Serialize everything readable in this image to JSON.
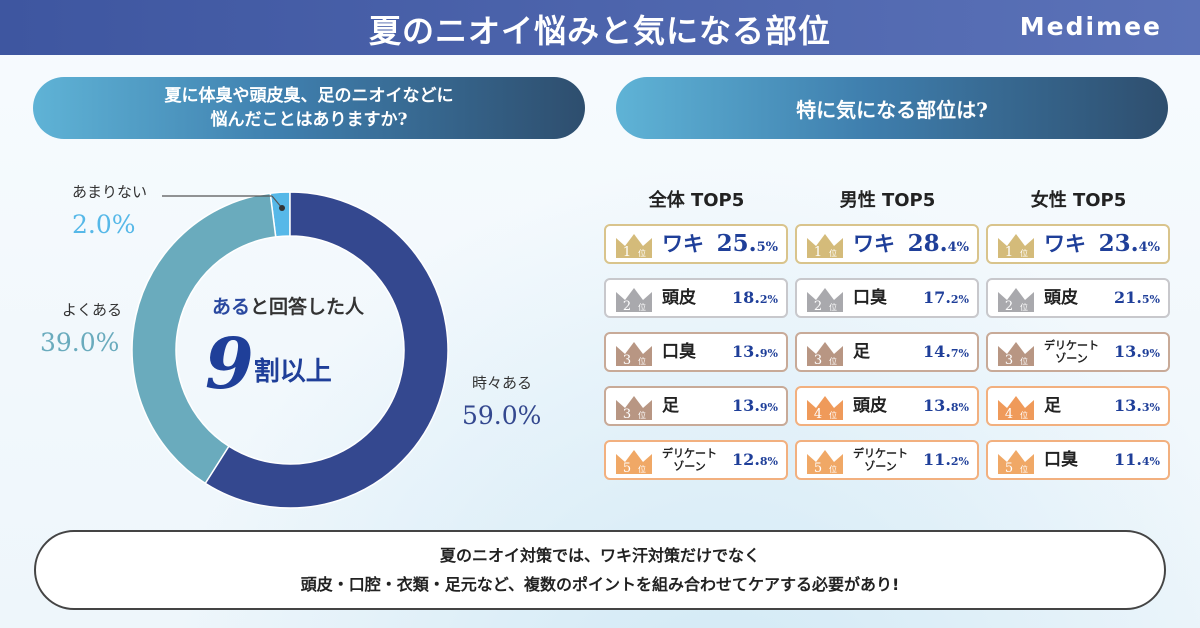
{
  "header": {
    "title": "夏のニオイ悩みと気になる部位",
    "brand": "Medimee"
  },
  "left_question": {
    "line1": "夏に体臭や頭皮臭、足のニオイなどに",
    "line2": "悩んだことはありますか?"
  },
  "right_question": "特に気になる部位は?",
  "donut": {
    "center_highlight": "ある",
    "center_rest": "と回答した人",
    "big_number": "9",
    "big_suffix": "割以上",
    "labels": [
      {
        "name": "あまりない",
        "percent": "2.0%"
      },
      {
        "name": "よくある",
        "percent": "39.0%"
      },
      {
        "name": "時々ある",
        "percent": "59.0%"
      }
    ]
  },
  "chart_data": {
    "type": "pie",
    "categories": [
      "時々ある",
      "よくある",
      "あまりない"
    ],
    "values": [
      59.0,
      39.0,
      2.0
    ],
    "colors": [
      "#34488f",
      "#6aabbd",
      "#56b8e8"
    ]
  },
  "rankings": {
    "columns": [
      {
        "title": "全体 TOP5",
        "items": [
          {
            "rank": "1",
            "part": "ワキ",
            "value": "25.5",
            "unit": "%"
          },
          {
            "rank": "2",
            "part": "頭皮",
            "value": "18.2",
            "unit": "%"
          },
          {
            "rank": "3",
            "part": "口臭",
            "value": "13.9",
            "unit": "%"
          },
          {
            "rank": "3",
            "part": "足",
            "value": "13.9",
            "unit": "%"
          },
          {
            "rank": "5",
            "part": "デリケートゾーン",
            "value": "12.8",
            "unit": "%"
          }
        ]
      },
      {
        "title": "男性 TOP5",
        "items": [
          {
            "rank": "1",
            "part": "ワキ",
            "value": "28.4",
            "unit": "%"
          },
          {
            "rank": "2",
            "part": "口臭",
            "value": "17.2",
            "unit": "%"
          },
          {
            "rank": "3",
            "part": "足",
            "value": "14.7",
            "unit": "%"
          },
          {
            "rank": "4",
            "part": "頭皮",
            "value": "13.8",
            "unit": "%"
          },
          {
            "rank": "5",
            "part": "デリケートゾーン",
            "value": "11.2",
            "unit": "%"
          }
        ]
      },
      {
        "title": "女性 TOP5",
        "items": [
          {
            "rank": "1",
            "part": "ワキ",
            "value": "23.4",
            "unit": "%"
          },
          {
            "rank": "2",
            "part": "頭皮",
            "value": "21.5",
            "unit": "%"
          },
          {
            "rank": "3",
            "part": "デリケートゾーン",
            "value": "13.9",
            "unit": "%"
          },
          {
            "rank": "4",
            "part": "足",
            "value": "13.3",
            "unit": "%"
          },
          {
            "rank": "5",
            "part": "口臭",
            "value": "11.4",
            "unit": "%"
          }
        ]
      }
    ],
    "rank_suffix": "位",
    "rank_colors": {
      "1": "#d4bb7a",
      "2": "#a9a9ad",
      "3": "#b89683",
      "4": "#ef9a5a",
      "5": "#f0a866"
    },
    "rank_border_colors": {
      "1": "#d9c48c",
      "2": "#c8c8cc",
      "3": "#c8aa98",
      "4": "#f2b07f",
      "5": "#f2b07f"
    }
  },
  "footer": {
    "line1": "夏のニオイ対策では、ワキ汗対策だけでなく",
    "line2": "頭皮・口腔・衣類・足元など、複数のポイントを組み合わせてケアする必要があり!"
  }
}
